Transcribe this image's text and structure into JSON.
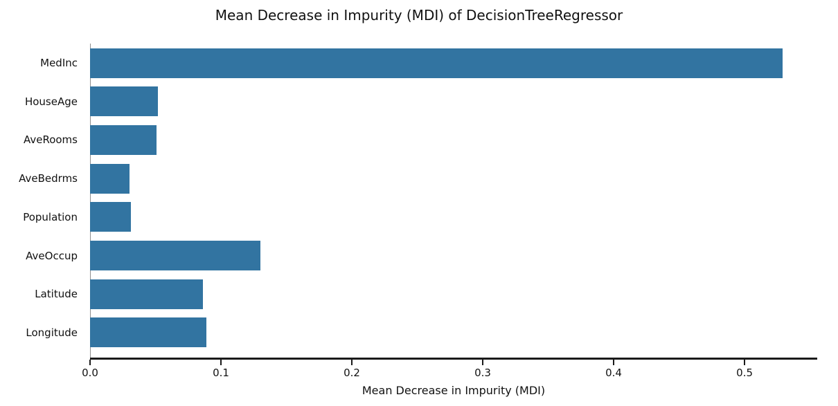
{
  "chart_data": {
    "type": "bar",
    "orientation": "horizontal",
    "title": "Mean Decrease in Impurity (MDI) of DecisionTreeRegressor",
    "xlabel": "Mean Decrease in Impurity (MDI)",
    "ylabel": "",
    "categories": [
      "MedInc",
      "HouseAge",
      "AveRooms",
      "AveBedrms",
      "Population",
      "AveOccup",
      "Latitude",
      "Longitude"
    ],
    "values": [
      0.529,
      0.052,
      0.051,
      0.03,
      0.031,
      0.13,
      0.086,
      0.089
    ],
    "xlim": [
      0,
      0.5555
    ],
    "xticks": [
      0.0,
      0.1,
      0.2,
      0.3,
      0.4,
      0.5
    ],
    "xtick_labels": [
      "0.0",
      "0.1",
      "0.2",
      "0.3",
      "0.4",
      "0.5"
    ],
    "bar_color": "#3274a1",
    "axis_color": "#1a1a1a",
    "left_spine_color": "#8f8f8f",
    "grid": false,
    "legend": null
  }
}
